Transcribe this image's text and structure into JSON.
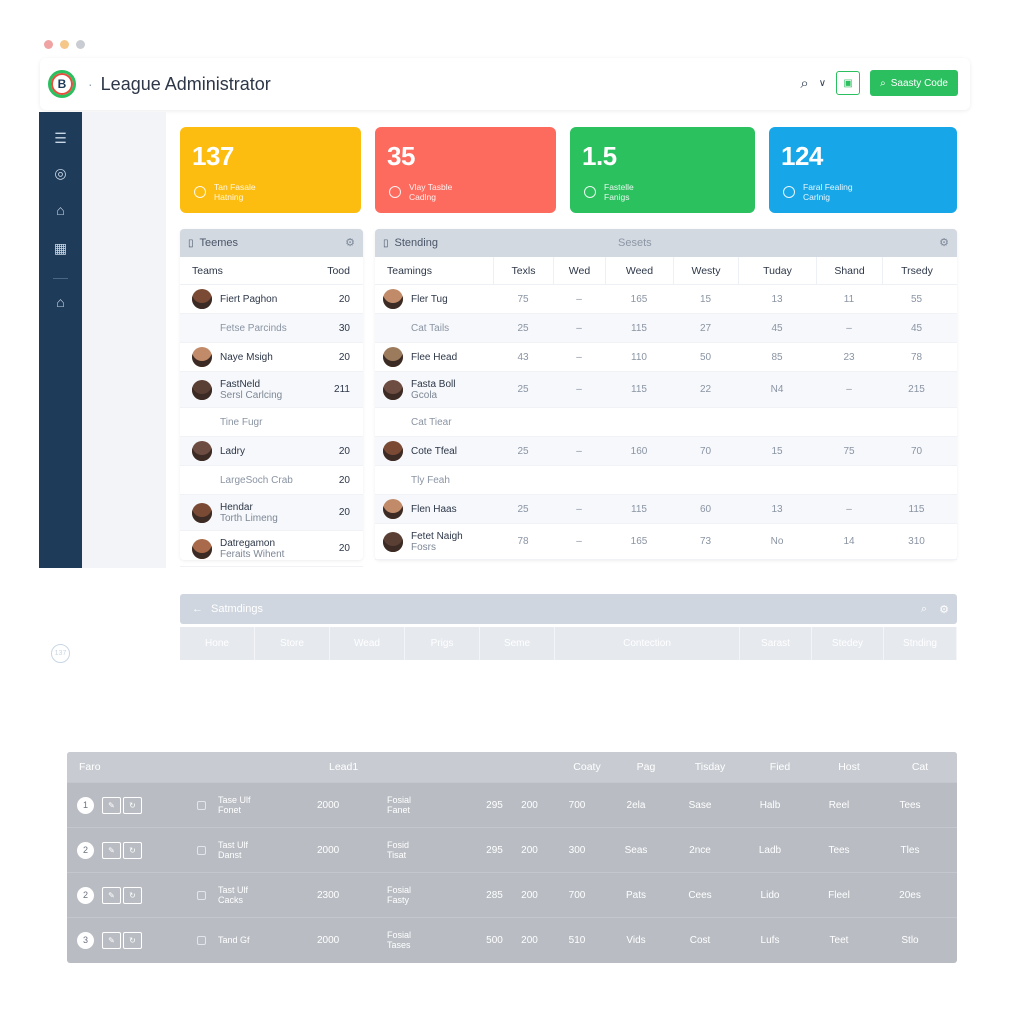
{
  "window": {
    "dot_colors": [
      "#f0a3a3",
      "#f5c88a",
      "#c9cdd3"
    ]
  },
  "header": {
    "logo_letter": "B",
    "title": "League Administrator",
    "action_label": "Saasty Code",
    "icons": [
      "search-icon",
      "chevron-down-icon",
      "app-icon",
      "search-icon"
    ]
  },
  "sidebar": {
    "icons": [
      "menu-icon",
      "globe-icon",
      "users-icon",
      "calendar-icon",
      "lock-icon"
    ],
    "avatar_text": "137"
  },
  "kpis": [
    {
      "value": "137",
      "line1": "Tan Fasale",
      "line2": "Hatning",
      "color": "#fdbd10"
    },
    {
      "value": "35",
      "line1": "Vlay Tasble",
      "line2": "Cadlng",
      "color": "#fd6b5e"
    },
    {
      "value": "1.5",
      "line1": "Fastelle",
      "line2": "Fanigs",
      "color": "#2bc15f"
    },
    {
      "value": "124",
      "line1": "Faral Fealing",
      "line2": "Carlnig",
      "color": "#17a7e9"
    }
  ],
  "teams_panel": {
    "title": "Teemes",
    "columns": [
      "Teams",
      "Tood"
    ],
    "rows": [
      {
        "name": "Fiert Paghon",
        "sub": "",
        "value": "20",
        "avatar": true
      },
      {
        "name": "Fetse Parcinds",
        "sub": "",
        "value": "30",
        "avatar": false
      },
      {
        "name": "Naye Msigh",
        "sub": "",
        "value": "20",
        "avatar": true
      },
      {
        "name": "FastNeld",
        "sub": "Sersl Carlcing",
        "value": "211",
        "avatar": true
      },
      {
        "name": "Tine Fugr",
        "sub": "",
        "value": "",
        "avatar": false
      },
      {
        "name": "Ladry",
        "sub": "",
        "value": "20",
        "avatar": true
      },
      {
        "name": "LargeSoch Crab",
        "sub": "",
        "value": "20",
        "avatar": false
      },
      {
        "name": "Hendar",
        "sub": "Torth Limeng",
        "value": "20",
        "avatar": true
      },
      {
        "name": "Datregamon",
        "sub": "Feraits Wihent",
        "value": "20",
        "avatar": true
      }
    ]
  },
  "standing_panel": {
    "title": "Stending",
    "title_center": "Sesets",
    "columns": [
      "Teamings",
      "Texls",
      "Wed",
      "Weed",
      "Westy",
      "Tuday",
      "Shand",
      "Trsedy"
    ],
    "rows": [
      {
        "name": "Fler Tug",
        "sub": "",
        "avatar": true,
        "cells": [
          "75",
          "–",
          "165",
          "15",
          "13",
          "11",
          "55"
        ]
      },
      {
        "name": "Cat Tails",
        "sub": "",
        "avatar": false,
        "cells": [
          "25",
          "–",
          "115",
          "27",
          "45",
          "–",
          "45"
        ]
      },
      {
        "name": "Flee Head",
        "sub": "",
        "avatar": true,
        "cells": [
          "43",
          "–",
          "110",
          "50",
          "85",
          "23",
          "78"
        ]
      },
      {
        "name": "Fasta Boll",
        "sub": "Gcola",
        "avatar": true,
        "cells": [
          "25",
          "–",
          "115",
          "22",
          "N4",
          "–",
          "215"
        ]
      },
      {
        "name": "Cat Tiear",
        "sub": "",
        "avatar": false,
        "cells": [
          "",
          "",
          "",
          "",
          "",
          "",
          ""
        ]
      },
      {
        "name": "Cote Tfeal",
        "sub": "",
        "avatar": true,
        "cells": [
          "25",
          "–",
          "160",
          "70",
          "15",
          "75",
          "70"
        ]
      },
      {
        "name": "Tly Feah",
        "sub": "",
        "avatar": false,
        "cells": [
          "",
          "",
          "",
          "",
          "",
          "",
          ""
        ]
      },
      {
        "name": "Flen Haas",
        "sub": "",
        "avatar": true,
        "cells": [
          "25",
          "–",
          "115",
          "60",
          "13",
          "–",
          "115"
        ]
      },
      {
        "name": "Fetet Naigh",
        "sub": "Fosrs",
        "avatar": true,
        "cells": [
          "78",
          "–",
          "165",
          "73",
          "No",
          "14",
          "310"
        ]
      }
    ]
  },
  "standings_section": {
    "title": "Satmdings",
    "columns": [
      "Hone",
      "Store",
      "Wead",
      "Prigs",
      "Seme",
      "Contection",
      "Sarast",
      "Stedey",
      "Stnding"
    ]
  },
  "bottom_table": {
    "columns": [
      "Faro",
      "Lead1",
      "Coaty",
      "Pag",
      "Tisday",
      "Fied",
      "Host",
      "Cat"
    ],
    "rows": [
      {
        "num": "1",
        "name": "Tase Ulf",
        "name_sub": "Fonet",
        "lead": "2000",
        "team": "Fosial",
        "team_sub": "Fanet",
        "a": "295",
        "b": "200",
        "coaty": "700",
        "pag": "2ela",
        "tisday": "Sase",
        "fied": "Halb",
        "host": "Reel",
        "cat": "Tees"
      },
      {
        "num": "2",
        "name": "Tast Ulf",
        "name_sub": "Danst",
        "lead": "2000",
        "team": "Fosid",
        "team_sub": "Tisat",
        "a": "295",
        "b": "200",
        "coaty": "300",
        "pag": "Seas",
        "tisday": "2nce",
        "fied": "Ladb",
        "host": "Tees",
        "cat": "Tles"
      },
      {
        "num": "2",
        "name": "Tast Ulf",
        "name_sub": "Cacks",
        "lead": "2300",
        "team": "Fosial",
        "team_sub": "Fasty",
        "a": "285",
        "b": "200",
        "coaty": "700",
        "pag": "Pats",
        "tisday": "Cees",
        "fied": "Lido",
        "host": "Fleel",
        "cat": "20es"
      },
      {
        "num": "3",
        "name": "Tand Gf",
        "name_sub": "",
        "lead": "2000",
        "team": "Fosial",
        "team_sub": "Tases",
        "a": "500",
        "b": "200",
        "coaty": "510",
        "pag": "Vids",
        "tisday": "Cost",
        "fied": "Lufs",
        "host": "Teet",
        "cat": "Stlo"
      }
    ]
  }
}
